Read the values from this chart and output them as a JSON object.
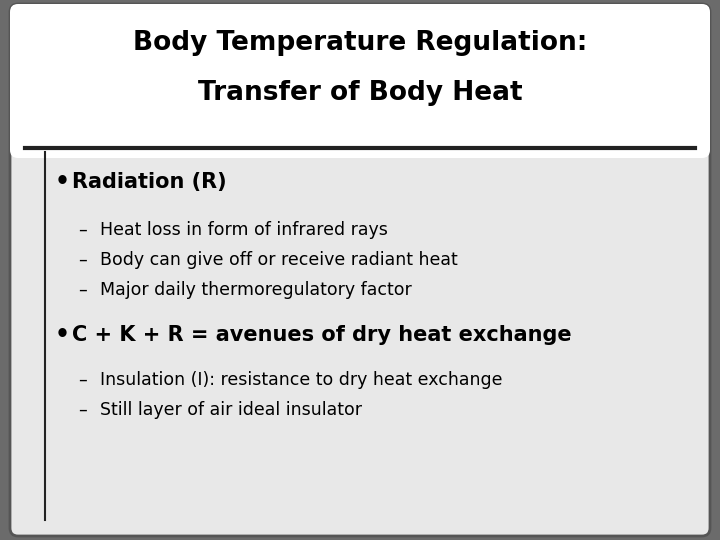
{
  "title_line1": "Body Temperature Regulation:",
  "title_line2": "Transfer of Body Heat",
  "bullet1_text": "Radiation (R)",
  "bullet1_sub": [
    "Heat loss in form of infrared rays",
    "Body can give off or receive radiant heat",
    "Major daily thermoregulatory factor"
  ],
  "bullet2_text": "C + K + R = avenues of dry heat exchange",
  "bullet2_sub": [
    "Insulation (I): resistance to dry heat exchange",
    "Still layer of air ideal insulator"
  ],
  "bg_outer": "#6b6b6b",
  "bg_inner": "#e8e8e8",
  "title_bg": "#ffffff",
  "title_color": "#000000",
  "text_color": "#000000",
  "separator_color": "#222222",
  "title_fontsize": 19,
  "bullet1_fontsize": 15,
  "bullet2_fontsize": 15,
  "sub_fontsize": 12.5
}
